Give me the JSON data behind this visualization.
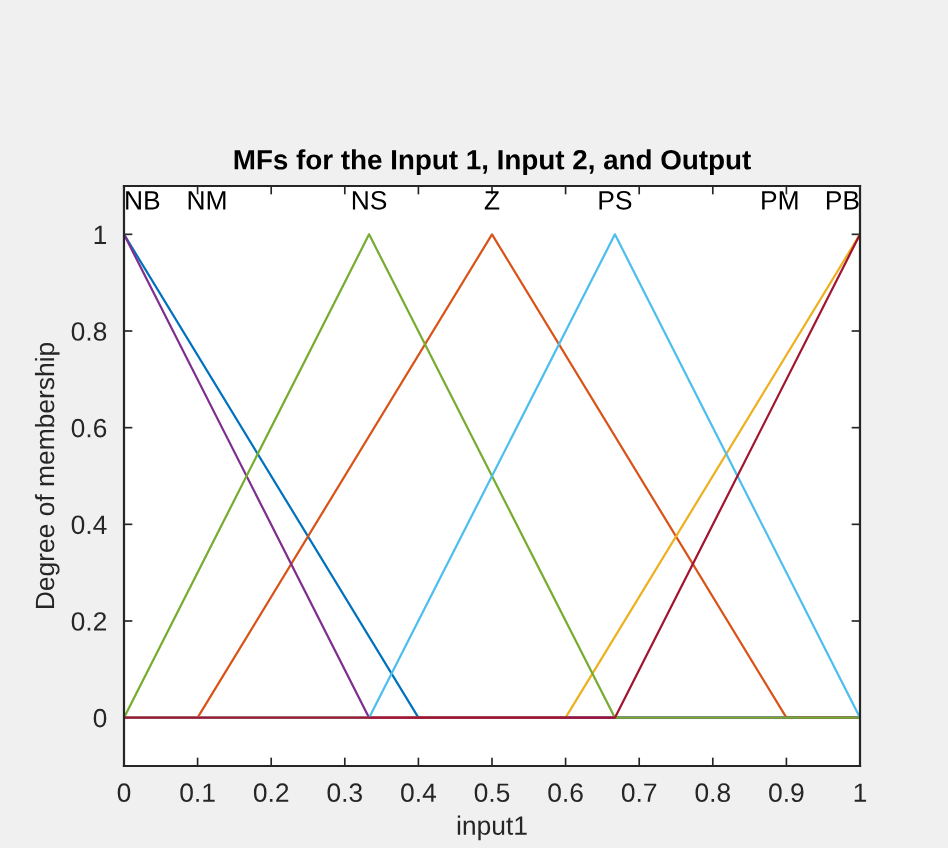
{
  "chart_data": {
    "type": "line",
    "title": "MFs for the Input 1, Input 2, and Output",
    "xlabel": "input1",
    "ylabel": "Degree of membership",
    "xlim": [
      0,
      1
    ],
    "ylim": [
      -0.1,
      1.1
    ],
    "xticks": [
      0,
      0.1,
      0.2,
      0.3,
      0.4,
      0.5,
      0.6,
      0.7,
      0.8,
      0.9,
      1
    ],
    "yticks": [
      0,
      0.2,
      0.4,
      0.6,
      0.8,
      1
    ],
    "grid": false,
    "line_style": "solid",
    "series": [
      {
        "name": "NB",
        "color": "#0072bd",
        "x": [
          0,
          0.4,
          1
        ],
        "values": [
          1,
          0,
          0
        ]
      },
      {
        "name": "Z",
        "color": "#d95319",
        "x": [
          0,
          0.1,
          0.5,
          0.9,
          1
        ],
        "values": [
          0,
          0,
          1,
          0,
          0
        ]
      },
      {
        "name": "PB",
        "color": "#edb120",
        "x": [
          0,
          0.6,
          1
        ],
        "values": [
          0,
          0,
          1
        ]
      },
      {
        "name": "NM",
        "color": "#7e2f8e",
        "x": [
          0,
          0.333,
          1
        ],
        "values": [
          1,
          0,
          0
        ]
      },
      {
        "name": "NS",
        "color": "#77ac30",
        "x": [
          0,
          0.333,
          0.667,
          1
        ],
        "values": [
          0,
          1,
          0,
          0
        ]
      },
      {
        "name": "PS",
        "color": "#4dbeee",
        "x": [
          0,
          0.333,
          0.667,
          1
        ],
        "values": [
          0,
          0,
          1,
          0
        ]
      },
      {
        "name": "PM",
        "color": "#a2142f",
        "x": [
          0,
          0.667,
          1
        ],
        "values": [
          0,
          0,
          1
        ]
      }
    ]
  }
}
